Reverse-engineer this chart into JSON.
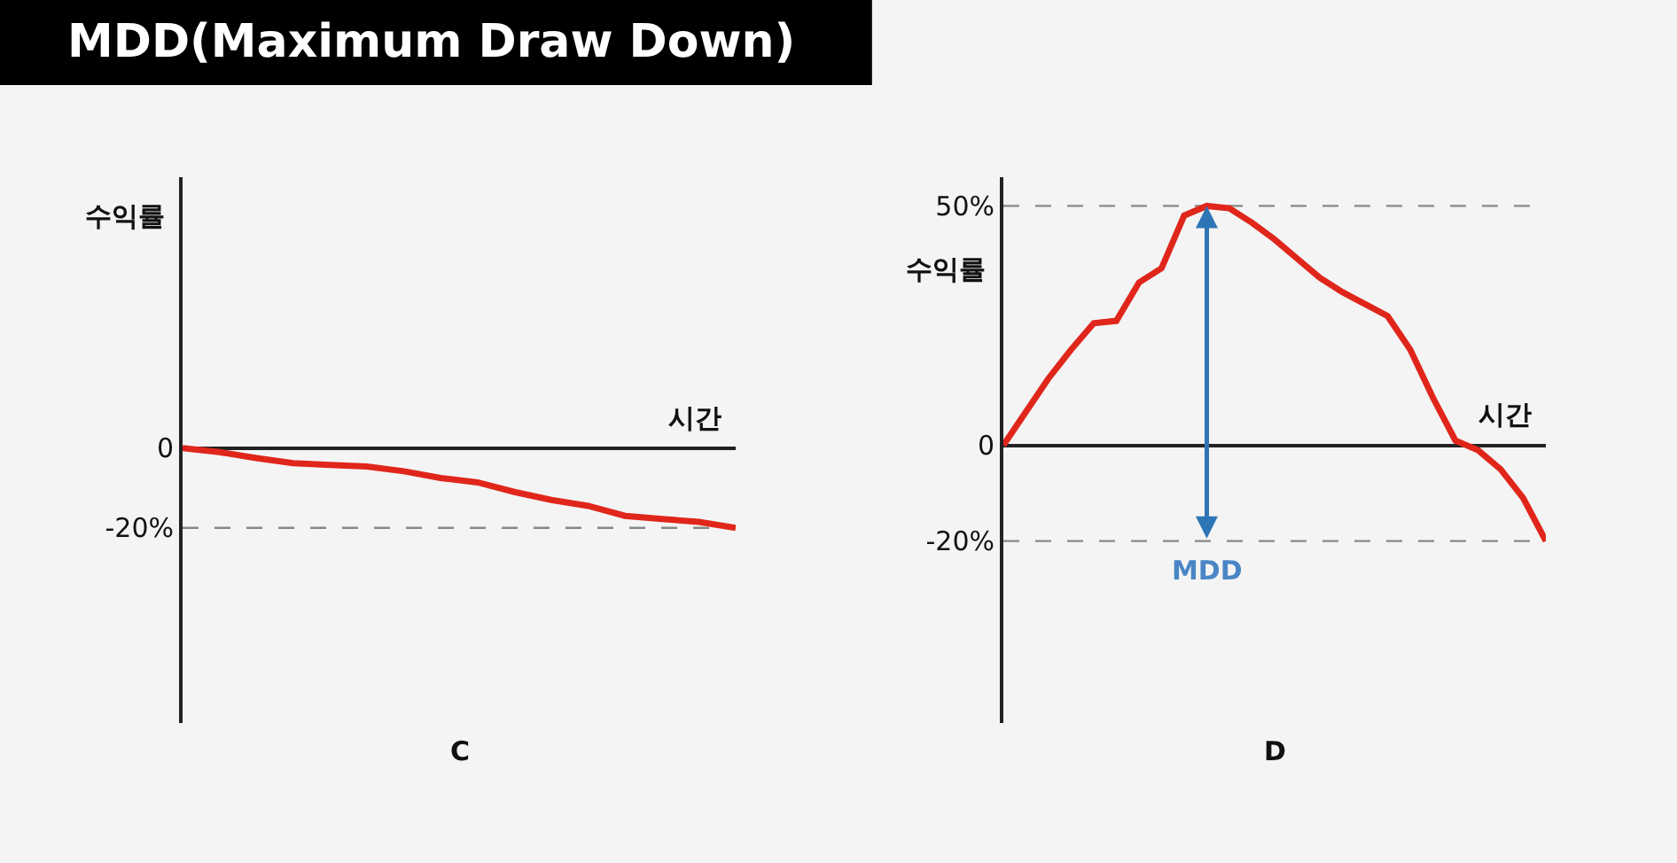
{
  "chart_data": [
    {
      "type": "line",
      "title": "MDD(Maximum Draw Down)",
      "xlabel": "시간",
      "ylabel": "수익률",
      "annotations": [
        "C"
      ],
      "categories": [
        null,
        null,
        null,
        null,
        null,
        null,
        null,
        null,
        null,
        null,
        null,
        null,
        null,
        null,
        null,
        null
      ],
      "series": [
        {
          "color": "#e0261b",
          "values": [
            0,
            -1,
            -2.5,
            -3.8,
            -4.2,
            -4.6,
            -5.8,
            -7.5,
            -8.6,
            -11,
            -13,
            -14.5,
            -17,
            -17.8,
            -18.5,
            -20
          ]
        }
      ],
      "ylim": [
        -69,
        68
      ],
      "yticks": [
        {
          "value": 0,
          "label": "0"
        },
        {
          "value": -20,
          "label": "-20%"
        }
      ],
      "tick_labels": "y",
      "ref_lines": [
        {
          "axis": "y",
          "value": -20,
          "color": "#888888",
          "line_style": "dashed"
        }
      ]
    },
    {
      "type": "line",
      "xlabel": "시간",
      "ylabel": "수익률",
      "annotations": [
        "D",
        {
          "text": "MDD",
          "y": -20
        }
      ],
      "categories": [
        null,
        null,
        null,
        null,
        null,
        null,
        null,
        null,
        null,
        null,
        null,
        null,
        null,
        null,
        null,
        null,
        null,
        null,
        null,
        null,
        null,
        null,
        null,
        null,
        null
      ],
      "series": [
        {
          "color": "#e0261b",
          "values": [
            0,
            7,
            14,
            20,
            25.5,
            26,
            34,
            37,
            48,
            50,
            49.5,
            46.5,
            43,
            39,
            35,
            32,
            29.5,
            27,
            20,
            10,
            1,
            -1,
            -5,
            -11,
            -20
          ]
        }
      ],
      "ylim": [
        -58,
        56
      ],
      "yticks": [
        {
          "value": 50,
          "label": "50%"
        },
        {
          "value": 0,
          "label": "0"
        },
        {
          "value": -20,
          "label": "-20%"
        }
      ],
      "tick_labels": "y",
      "ref_lines": [
        {
          "axis": "y",
          "value": 50,
          "color": "#888888",
          "line_style": "dashed"
        },
        {
          "axis": "y",
          "value": -20,
          "color": "#888888",
          "line_style": "dashed"
        }
      ]
    }
  ]
}
